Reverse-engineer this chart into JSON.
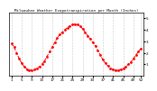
{
  "title": "Milwaukee Weather Evapotranspiration per Month (Inches)",
  "line_color": "#ff0000",
  "line_style": "--",
  "marker": "o",
  "marker_size": 1.0,
  "linewidth": 0.7,
  "ylim": [
    0,
    5.5
  ],
  "yticks": [
    1,
    2,
    3,
    4,
    5
  ],
  "ytick_labels": [
    "1",
    "2",
    "3",
    "4",
    "5"
  ],
  "ylabel_fontsize": 3.2,
  "xlabel_fontsize": 3.0,
  "title_fontsize": 3.0,
  "grid_color": "#999999",
  "bg_color": "#ffffff",
  "plot_bg": "#ffffff",
  "x_values": [
    1,
    2,
    3,
    4,
    5,
    6,
    7,
    8,
    9,
    10,
    11,
    12,
    13,
    14,
    15,
    16,
    17,
    18,
    19,
    20,
    21,
    22,
    23,
    24,
    25,
    26,
    27,
    28,
    29,
    30,
    31,
    32,
    33,
    34,
    35,
    36,
    37,
    38,
    39,
    40,
    41,
    42,
    43,
    44,
    45,
    46,
    47,
    48,
    49,
    50,
    51,
    52
  ],
  "y_values": [
    2.8,
    2.5,
    2.0,
    1.5,
    1.1,
    0.8,
    0.6,
    0.5,
    0.5,
    0.55,
    0.65,
    0.8,
    1.0,
    1.3,
    1.7,
    2.1,
    2.5,
    2.9,
    3.3,
    3.6,
    3.8,
    4.0,
    4.2,
    4.35,
    4.45,
    4.5,
    4.45,
    4.3,
    4.1,
    3.8,
    3.5,
    3.2,
    2.9,
    2.6,
    2.2,
    1.8,
    1.4,
    1.1,
    0.85,
    0.65,
    0.55,
    0.5,
    0.5,
    0.55,
    0.65,
    0.8,
    1.0,
    1.2,
    1.5,
    1.8,
    2.1,
    2.4
  ],
  "xtick_positions": [
    1,
    5,
    9,
    13,
    17,
    21,
    25,
    29,
    33,
    37,
    41,
    45,
    49,
    52
  ],
  "xtick_labels": [
    "1",
    "5",
    "9",
    "13",
    "17",
    "21",
    "25",
    "29",
    "33",
    "37",
    "41",
    "45",
    "49",
    "52"
  ],
  "xlim": [
    0,
    53
  ]
}
